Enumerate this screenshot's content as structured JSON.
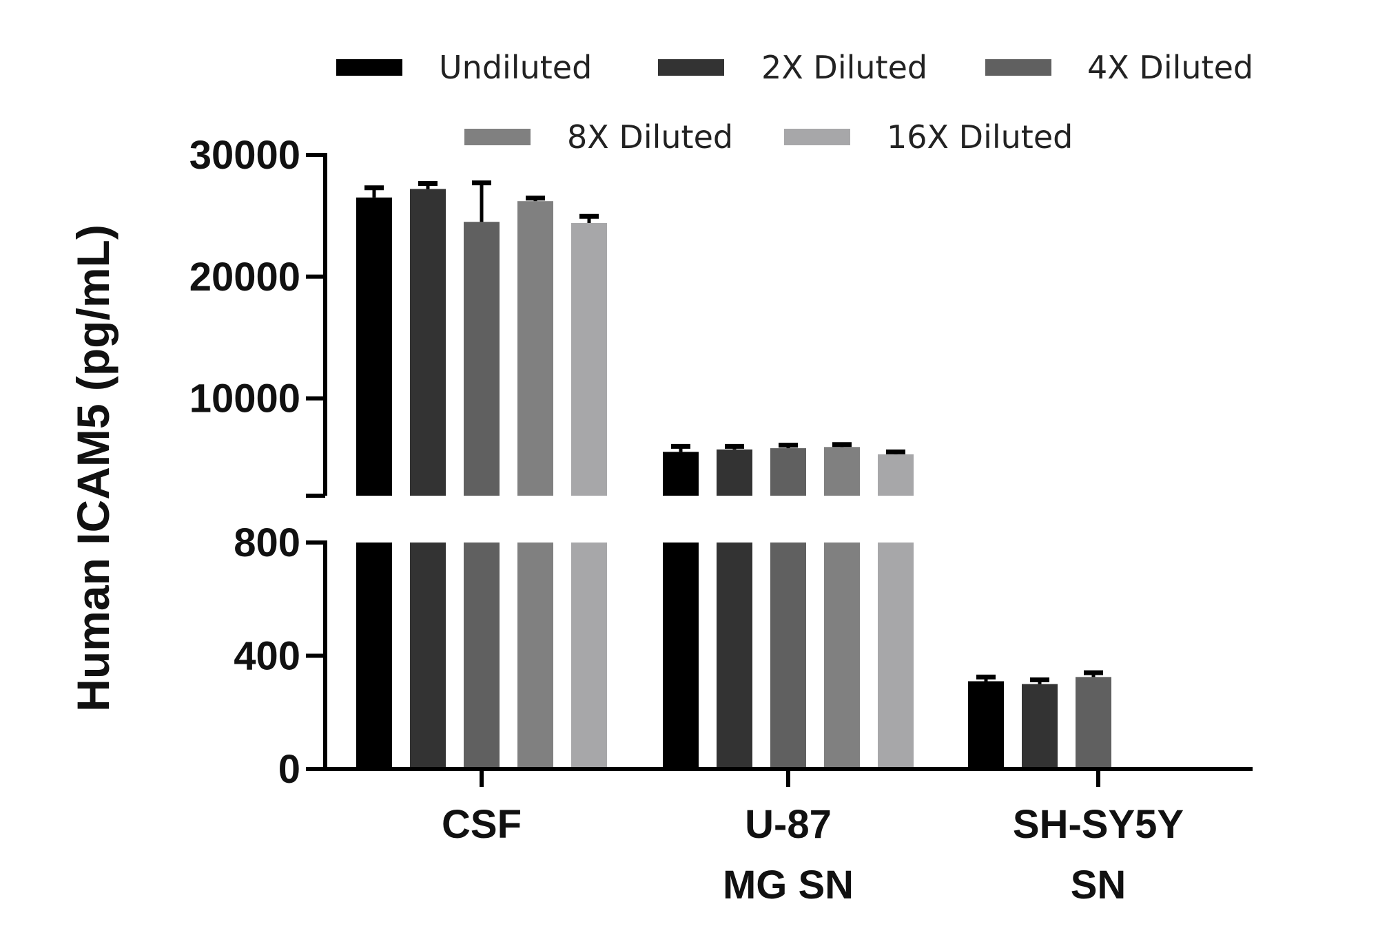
{
  "chart_data": {
    "type": "bar",
    "title": "",
    "xlabel": "",
    "ylabel": "Human ICAM5 (pg/mL)",
    "categories": [
      [
        "CSF"
      ],
      [
        "U-87",
        "MG SN"
      ],
      [
        "SH-SY5Y",
        "SN"
      ]
    ],
    "y_axis": {
      "broken": true,
      "lower_segment": {
        "range": [
          0,
          800
        ],
        "ticks": [
          0,
          400,
          800
        ]
      },
      "upper_segment": {
        "range": [
          2000,
          30000
        ],
        "ticks": [
          10000,
          20000,
          30000
        ]
      }
    },
    "legend_placement": "top",
    "series": [
      {
        "name": "Undiluted",
        "color": "#000000",
        "values": [
          26500,
          5600,
          310
        ],
        "errors": [
          800,
          450,
          15
        ]
      },
      {
        "name": "2X Diluted",
        "color": "#333333",
        "values": [
          27200,
          5800,
          300
        ],
        "errors": [
          450,
          250,
          15
        ]
      },
      {
        "name": "4X Diluted",
        "color": "#606060",
        "values": [
          24500,
          5900,
          325
        ],
        "errors": [
          3200,
          250,
          15
        ]
      },
      {
        "name": "8X Diluted",
        "color": "#808080",
        "values": [
          26200,
          6000,
          null
        ],
        "errors": [
          250,
          200,
          null
        ]
      },
      {
        "name": "16X Diluted",
        "color": "#a7a7a9",
        "values": [
          24400,
          5400,
          null
        ],
        "errors": [
          550,
          200,
          null
        ]
      }
    ]
  }
}
